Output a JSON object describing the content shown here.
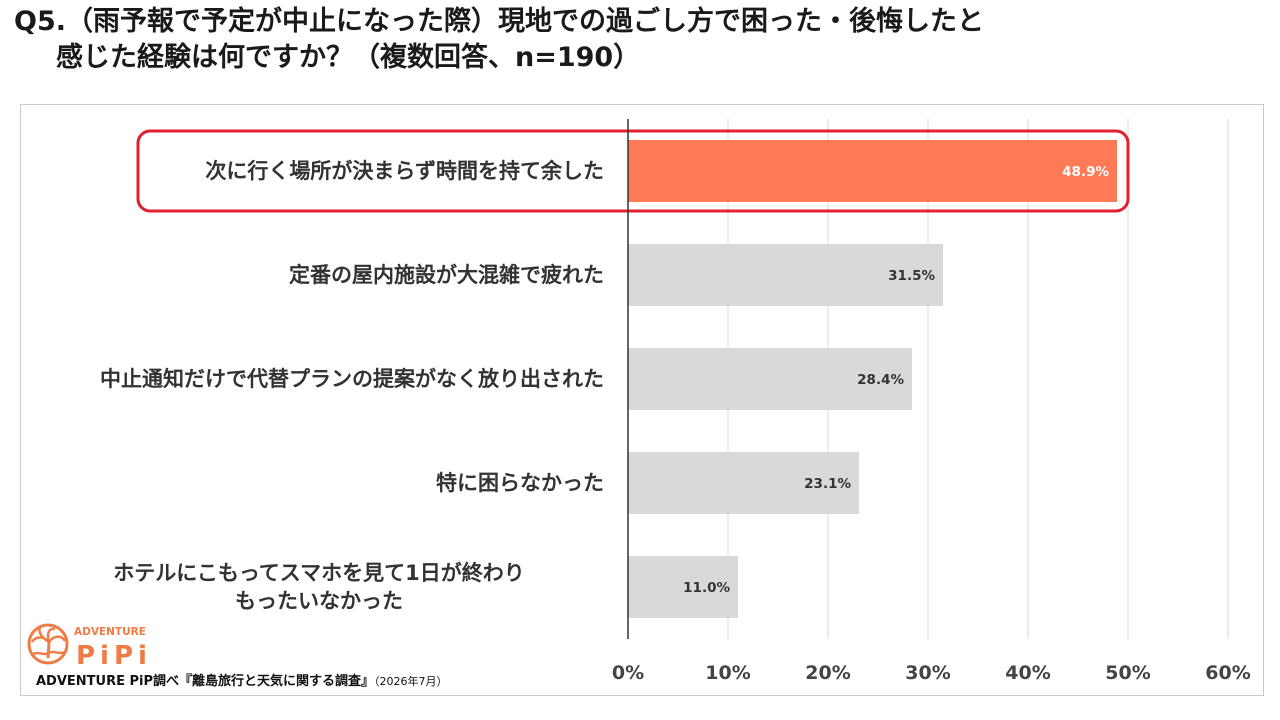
{
  "title": {
    "line1": "Q5.（雨予報で予定が中止になった際）現地での過ごし方で困った・後悔したと",
    "line2": "感じた経験は何ですか？（複数回答、n=190）"
  },
  "chart_data": {
    "type": "bar",
    "orientation": "horizontal",
    "categories": [
      [
        "次に行く場所が決まらず時間を持て余した"
      ],
      [
        "定番の屋内施設が大混雑で疲れた"
      ],
      [
        "中止通知だけで代替プランの提案がなく放り出された"
      ],
      [
        "特に困らなかった"
      ],
      [
        "ホテルにこもってスマホを見て1日が終わり",
        "もったいなかった"
      ]
    ],
    "values": [
      48.9,
      31.5,
      28.4,
      23.1,
      11.0
    ],
    "value_labels": [
      "48.9%",
      "31.5%",
      "28.4%",
      "23.1%",
      "11.0%"
    ],
    "highlight_index": 0,
    "xlim": [
      0,
      60
    ],
    "xticks": [
      "0%",
      "10%",
      "20%",
      "30%",
      "40%",
      "50%",
      "60%"
    ],
    "grid": true,
    "colors": {
      "highlight": "#ff7a55",
      "default": "#d9d9d9",
      "highlight_box": "#e0202e",
      "grid": "#d9d9d9",
      "axis": "#333333"
    }
  },
  "logo": {
    "word": "ADVENTURE",
    "mark": "PiPi"
  },
  "source": {
    "text": "ADVENTURE PiP調べ『離島旅行と天気に関する調査』",
    "date": "（2026年7月）"
  }
}
